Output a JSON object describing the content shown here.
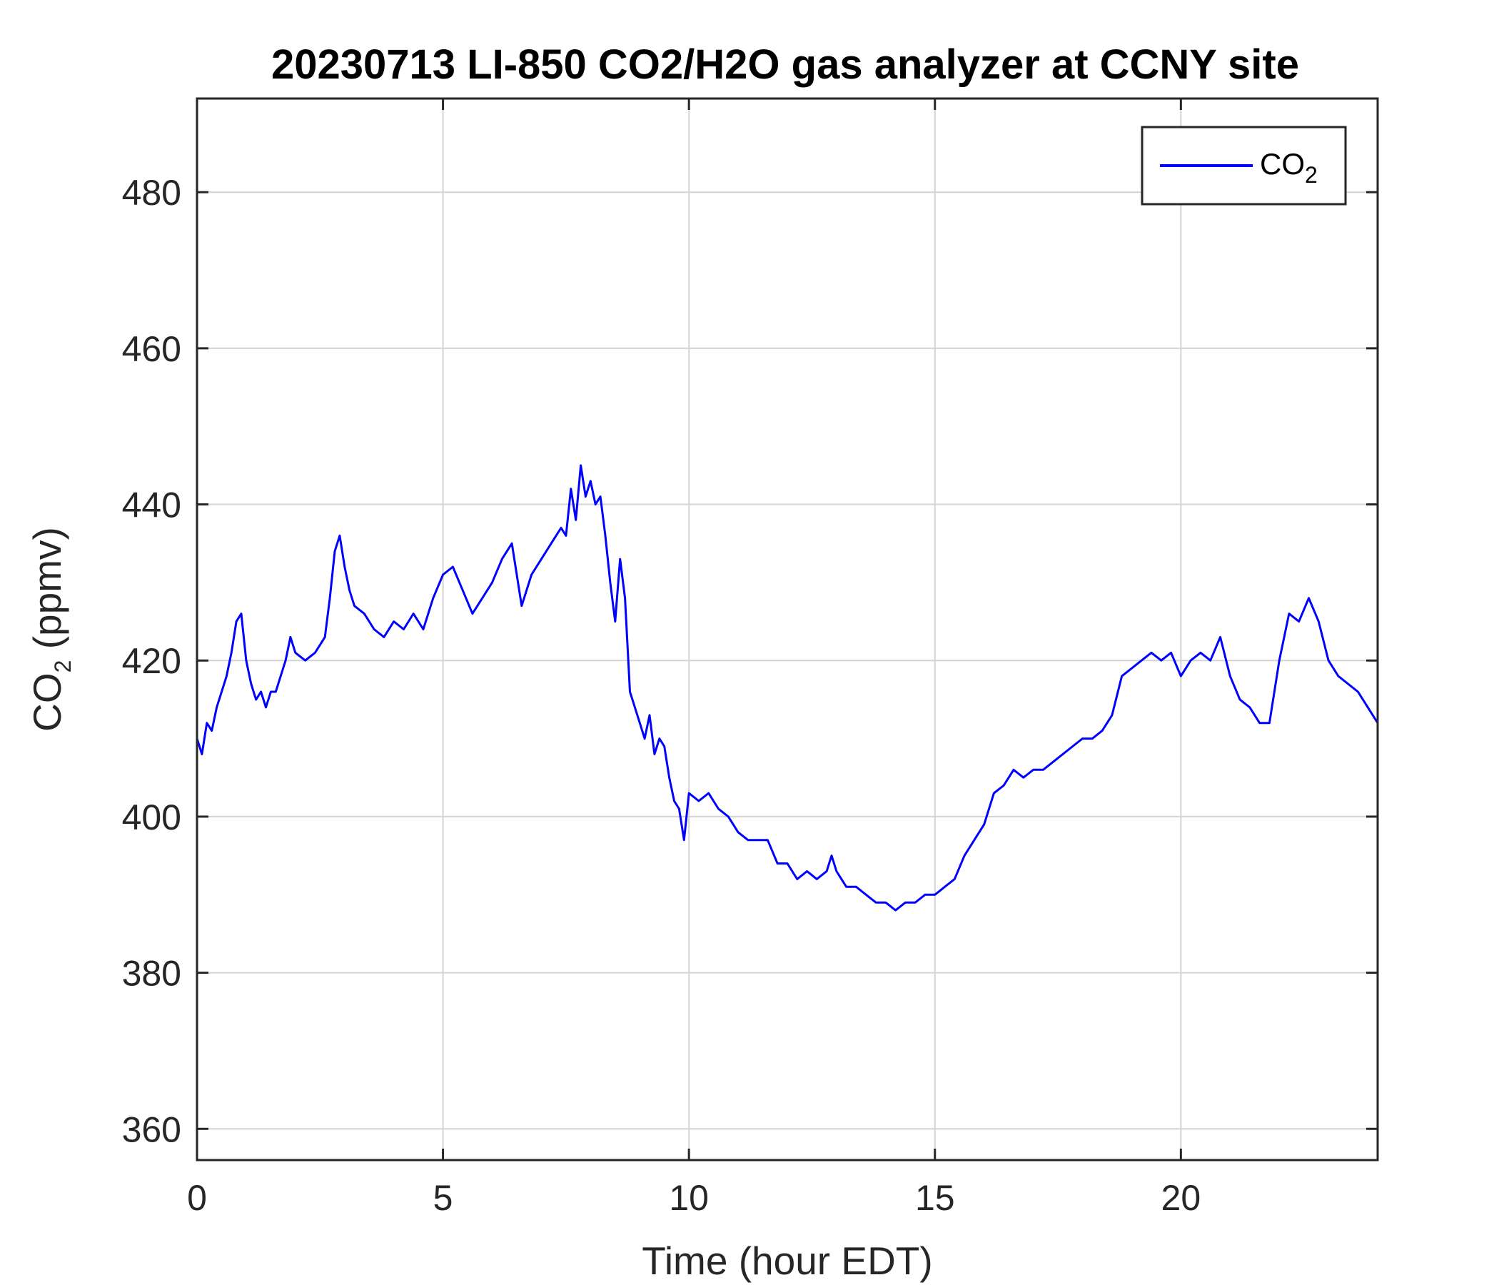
{
  "chart_data": {
    "type": "line",
    "title": "20230713 LI-850 CO2/H2O gas analyzer at CCNY site",
    "xlabel": "Time (hour EDT)",
    "ylabel": {
      "base": "CO",
      "sub": "2",
      "rest": " (ppmv)"
    },
    "xlim": [
      0,
      24
    ],
    "ylim": [
      356,
      492
    ],
    "xticks": [
      0,
      5,
      10,
      15,
      20
    ],
    "yticks": [
      360,
      380,
      400,
      420,
      440,
      460,
      480
    ],
    "grid": true,
    "legend_position": "top-right",
    "colors": {
      "series": "#0000ff",
      "frame": "#262626",
      "grid": "#d4d4d4"
    },
    "series": [
      {
        "name": {
          "base": "CO",
          "sub": "2"
        },
        "x": [
          0,
          0.1,
          0.2,
          0.3,
          0.4,
          0.5,
          0.6,
          0.7,
          0.8,
          0.9,
          1.0,
          1.1,
          1.2,
          1.3,
          1.4,
          1.5,
          1.6,
          1.7,
          1.8,
          1.9,
          2.0,
          2.2,
          2.4,
          2.6,
          2.7,
          2.8,
          2.9,
          3.0,
          3.1,
          3.2,
          3.4,
          3.6,
          3.8,
          4.0,
          4.2,
          4.4,
          4.6,
          4.8,
          5.0,
          5.2,
          5.4,
          5.6,
          5.8,
          6.0,
          6.2,
          6.4,
          6.6,
          6.8,
          7.0,
          7.2,
          7.4,
          7.5,
          7.6,
          7.7,
          7.8,
          7.9,
          8.0,
          8.1,
          8.2,
          8.3,
          8.4,
          8.5,
          8.6,
          8.7,
          8.8,
          8.9,
          9.0,
          9.1,
          9.2,
          9.3,
          9.4,
          9.5,
          9.6,
          9.7,
          9.8,
          9.9,
          10.0,
          10.2,
          10.4,
          10.6,
          10.8,
          11.0,
          11.2,
          11.4,
          11.6,
          11.8,
          12.0,
          12.2,
          12.4,
          12.6,
          12.8,
          12.9,
          13.0,
          13.2,
          13.4,
          13.6,
          13.8,
          14.0,
          14.2,
          14.4,
          14.6,
          14.8,
          15.0,
          15.2,
          15.4,
          15.6,
          15.8,
          16.0,
          16.2,
          16.4,
          16.6,
          16.8,
          17.0,
          17.2,
          17.4,
          17.6,
          17.8,
          18.0,
          18.2,
          18.4,
          18.6,
          18.8,
          19.0,
          19.2,
          19.4,
          19.6,
          19.8,
          20.0,
          20.2,
          20.4,
          20.6,
          20.8,
          21.0,
          21.2,
          21.4,
          21.6,
          21.8,
          22.0,
          22.2,
          22.4,
          22.6,
          22.8,
          23.0,
          23.2,
          23.4,
          23.6,
          23.8,
          24.0
        ],
        "y": [
          410,
          408,
          412,
          411,
          414,
          416,
          418,
          421,
          425,
          426,
          420,
          417,
          415,
          416,
          414,
          416,
          416,
          418,
          420,
          423,
          421,
          420,
          421,
          423,
          428,
          434,
          436,
          432,
          429,
          427,
          426,
          424,
          423,
          425,
          424,
          426,
          424,
          428,
          431,
          432,
          429,
          426,
          428,
          430,
          433,
          435,
          427,
          431,
          433,
          435,
          437,
          436,
          442,
          438,
          445,
          441,
          443,
          440,
          441,
          436,
          430,
          425,
          433,
          428,
          416,
          414,
          412,
          410,
          413,
          408,
          410,
          409,
          405,
          402,
          401,
          397,
          403,
          402,
          403,
          401,
          400,
          398,
          397,
          397,
          397,
          394,
          394,
          392,
          393,
          392,
          393,
          395,
          393,
          391,
          391,
          390,
          389,
          389,
          388,
          389,
          389,
          390,
          390,
          391,
          392,
          395,
          397,
          399,
          403,
          404,
          406,
          405,
          406,
          406,
          407,
          408,
          409,
          410,
          410,
          411,
          413,
          418,
          419,
          420,
          421,
          420,
          421,
          418,
          420,
          421,
          420,
          423,
          418,
          415,
          414,
          412,
          412,
          420,
          426,
          425,
          428,
          425,
          420,
          418,
          417,
          416,
          414,
          412
        ]
      }
    ]
  }
}
